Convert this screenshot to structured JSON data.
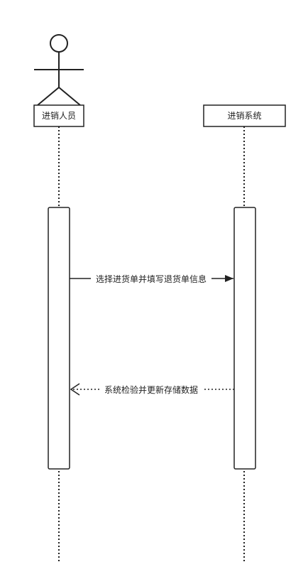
{
  "participants": [
    {
      "id": "actor",
      "label": "进销人员",
      "kind": "actor"
    },
    {
      "id": "system",
      "label": "进销系统",
      "kind": "box"
    }
  ],
  "messages": [
    {
      "from": "actor",
      "to": "system",
      "label": "选择进货单并填写退货单信息",
      "style": "solid"
    },
    {
      "from": "system",
      "to": "actor",
      "label": "系统检验并更新存储数据",
      "style": "dotted"
    }
  ],
  "colors": {
    "stroke": "#222222",
    "background": "#ffffff"
  }
}
